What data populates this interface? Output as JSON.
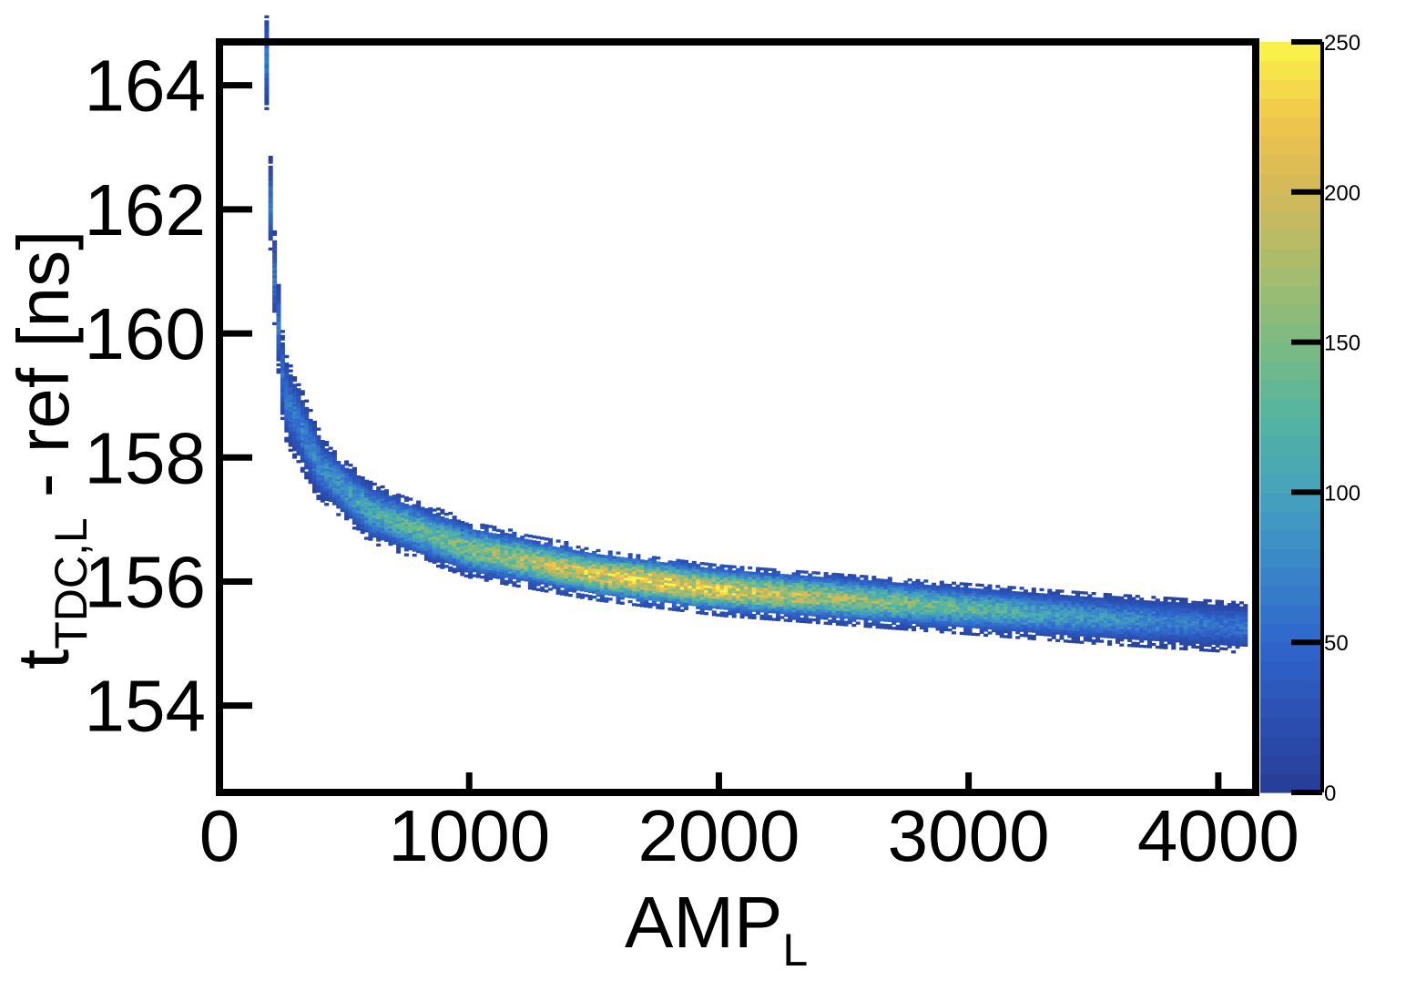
{
  "chart_data": {
    "type": "heatmap",
    "title": "",
    "xlabel": "AMP",
    "xlabel_sub": "L",
    "ylabel": "t",
    "ylabel_sub": "TDC,L",
    "ylabel_suffix": " - ref [ns]",
    "xlim": [
      0,
      4150
    ],
    "ylim": [
      152.6,
      164.7
    ],
    "x_ticks": [
      "0",
      "1000",
      "2000",
      "3000",
      "4000"
    ],
    "x_tick_values": [
      0,
      1000,
      2000,
      3000,
      4000
    ],
    "y_ticks": [
      "154",
      "156",
      "158",
      "160",
      "162",
      "164"
    ],
    "y_tick_values": [
      154,
      156,
      158,
      160,
      162,
      164
    ],
    "colorbar": {
      "range": [
        0,
        250
      ],
      "ticks": [
        "0",
        "50",
        "100",
        "150",
        "200",
        "250"
      ],
      "tick_values": [
        0,
        50,
        100,
        150,
        200,
        250
      ]
    },
    "band": {
      "description_points": [
        {
          "x": 180,
          "y": 164.4
        },
        {
          "x": 200,
          "y": 161.5
        },
        {
          "x": 250,
          "y": 159.0
        },
        {
          "x": 400,
          "y": 157.8
        },
        {
          "x": 600,
          "y": 157.1
        },
        {
          "x": 1000,
          "y": 156.5
        },
        {
          "x": 1500,
          "y": 156.1
        },
        {
          "x": 2000,
          "y": 155.85
        },
        {
          "x": 2500,
          "y": 155.7
        },
        {
          "x": 3000,
          "y": 155.55
        },
        {
          "x": 3500,
          "y": 155.4
        },
        {
          "x": 4100,
          "y": 155.25
        }
      ],
      "peak_counts": [
        {
          "x": 250,
          "count": 60
        },
        {
          "x": 600,
          "count": 110
        },
        {
          "x": 1000,
          "count": 150
        },
        {
          "x": 1700,
          "count": 230
        },
        {
          "x": 2500,
          "count": 170
        },
        {
          "x": 3200,
          "count": 110
        },
        {
          "x": 4000,
          "count": 60
        }
      ]
    },
    "grid": false,
    "colors": {
      "low": "#283d96",
      "high": "#fbf64a",
      "frame": "#000000"
    }
  }
}
